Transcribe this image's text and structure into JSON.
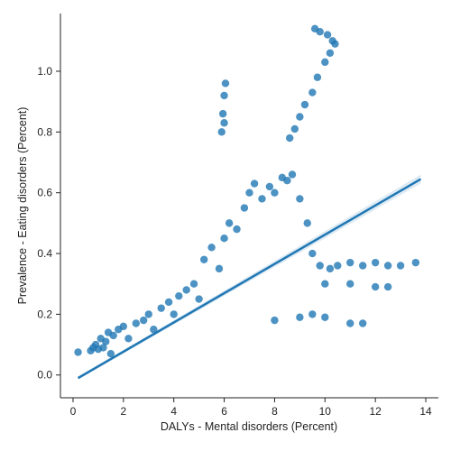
{
  "chart_data": {
    "type": "scatter",
    "title": "",
    "xlabel": "DALYs - Mental disorders (Percent)",
    "ylabel": "Prevalence - Eating disorders (Percent)",
    "xlim": [
      -0.5,
      14.5
    ],
    "ylim": [
      -0.075,
      1.19
    ],
    "x_ticks": [
      0,
      2,
      4,
      6,
      8,
      10,
      12,
      14
    ],
    "y_ticks": [
      0.0,
      0.2,
      0.4,
      0.6,
      0.8,
      1.0
    ],
    "x_tick_labels": [
      "0",
      "2",
      "4",
      "6",
      "8",
      "10",
      "12",
      "14"
    ],
    "y_tick_labels": [
      "0.0",
      "0.2",
      "0.4",
      "0.6",
      "0.8",
      "1.0"
    ],
    "grid": false,
    "point_color": "#1f77b4",
    "regression_line": {
      "x": [
        0.2,
        13.8
      ],
      "y": [
        -0.01,
        0.645
      ]
    },
    "series": [
      {
        "values": [
          [
            0.2,
            0.075
          ],
          [
            0.7,
            0.08
          ],
          [
            0.8,
            0.09
          ],
          [
            0.9,
            0.1
          ],
          [
            1.0,
            0.085
          ],
          [
            1.1,
            0.12
          ],
          [
            1.2,
            0.09
          ],
          [
            1.3,
            0.11
          ],
          [
            1.4,
            0.14
          ],
          [
            1.5,
            0.07
          ],
          [
            1.6,
            0.13
          ],
          [
            1.8,
            0.15
          ],
          [
            2.0,
            0.16
          ],
          [
            2.2,
            0.12
          ],
          [
            2.5,
            0.17
          ],
          [
            2.8,
            0.18
          ],
          [
            3.0,
            0.2
          ],
          [
            3.2,
            0.15
          ],
          [
            3.5,
            0.22
          ],
          [
            3.8,
            0.24
          ],
          [
            4.0,
            0.2
          ],
          [
            4.2,
            0.26
          ],
          [
            4.5,
            0.28
          ],
          [
            4.8,
            0.3
          ],
          [
            5.0,
            0.25
          ],
          [
            5.2,
            0.38
          ],
          [
            5.5,
            0.42
          ],
          [
            5.8,
            0.35
          ],
          [
            6.0,
            0.45
          ],
          [
            6.2,
            0.5
          ],
          [
            6.5,
            0.48
          ],
          [
            6.8,
            0.55
          ],
          [
            7.0,
            0.6
          ],
          [
            7.2,
            0.63
          ],
          [
            7.5,
            0.58
          ],
          [
            7.8,
            0.62
          ],
          [
            8.0,
            0.6
          ],
          [
            8.3,
            0.65
          ],
          [
            8.5,
            0.64
          ],
          [
            8.7,
            0.66
          ],
          [
            9.0,
            0.58
          ],
          [
            9.3,
            0.5
          ],
          [
            9.5,
            0.4
          ],
          [
            9.8,
            0.36
          ],
          [
            10.2,
            0.35
          ],
          [
            10.5,
            0.36
          ],
          [
            11.0,
            0.37
          ],
          [
            11.5,
            0.36
          ],
          [
            12.0,
            0.37
          ],
          [
            12.5,
            0.36
          ],
          [
            13.0,
            0.36
          ],
          [
            13.6,
            0.37
          ],
          [
            10.0,
            0.3
          ],
          [
            11.0,
            0.3
          ],
          [
            12.0,
            0.29
          ],
          [
            12.5,
            0.29
          ],
          [
            9.5,
            0.2
          ],
          [
            10.0,
            0.19
          ],
          [
            11.0,
            0.17
          ],
          [
            11.5,
            0.17
          ],
          [
            8.0,
            0.18
          ],
          [
            9.0,
            0.19
          ],
          [
            6.0,
            0.92
          ],
          [
            6.05,
            0.96
          ],
          [
            5.95,
            0.86
          ],
          [
            5.9,
            0.8
          ],
          [
            6.0,
            0.83
          ],
          [
            8.6,
            0.78
          ],
          [
            8.8,
            0.81
          ],
          [
            9.0,
            0.85
          ],
          [
            9.2,
            0.89
          ],
          [
            9.5,
            0.93
          ],
          [
            9.7,
            0.98
          ],
          [
            10.0,
            1.03
          ],
          [
            10.2,
            1.06
          ],
          [
            10.3,
            1.1
          ],
          [
            10.1,
            1.12
          ],
          [
            9.8,
            1.13
          ],
          [
            9.6,
            1.14
          ],
          [
            10.4,
            1.09
          ]
        ]
      }
    ]
  }
}
